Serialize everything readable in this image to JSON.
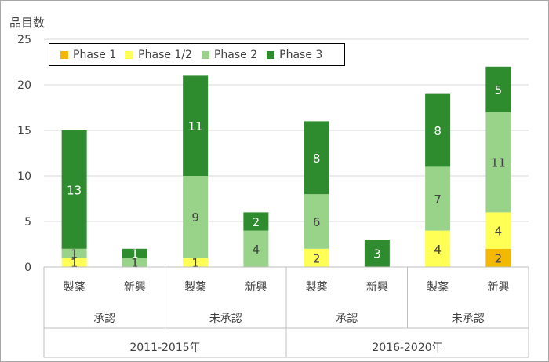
{
  "chart_data": {
    "type": "bar",
    "stacked": true,
    "ylabel": "品目数",
    "ylim": [
      0,
      25
    ],
    "yticks": [
      0,
      5,
      10,
      15,
      20,
      25
    ],
    "categories": [
      "製薬",
      "新興",
      "製薬",
      "新興",
      "製薬",
      "新興",
      "製薬",
      "新興"
    ],
    "subgroups": [
      "承認",
      "未承認",
      "承認",
      "未承認"
    ],
    "groups": [
      "2011-2015年",
      "2016-2020年"
    ],
    "series": [
      {
        "name": "Phase 1",
        "color": "#f5b800",
        "values": [
          0,
          0,
          0,
          0,
          0,
          0,
          0,
          2
        ]
      },
      {
        "name": "Phase 1/2",
        "color": "#ffff55",
        "values": [
          1,
          0,
          1,
          0,
          2,
          0,
          4,
          4
        ]
      },
      {
        "name": "Phase 2",
        "color": "#99d38a",
        "values": [
          1,
          1,
          9,
          4,
          6,
          0,
          7,
          11
        ]
      },
      {
        "name": "Phase 3",
        "color": "#2e8b2e",
        "values": [
          13,
          1,
          11,
          2,
          8,
          3,
          8,
          5
        ]
      }
    ],
    "legend_position": "top-left",
    "grid": true
  }
}
